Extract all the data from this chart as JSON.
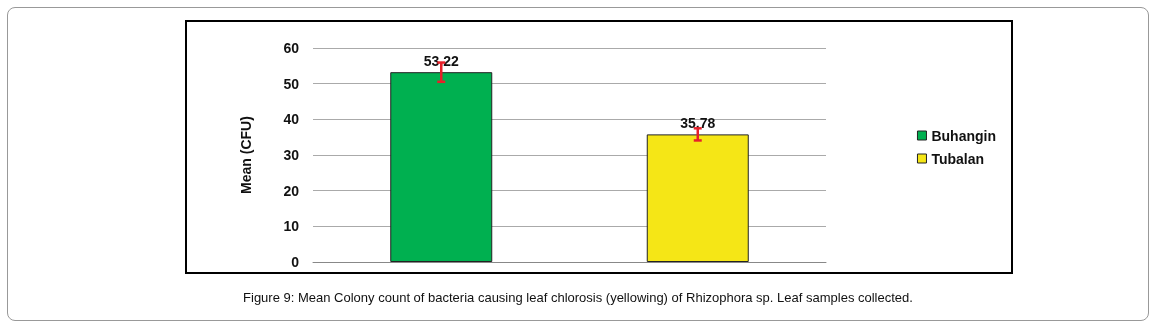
{
  "chart_data": {
    "type": "bar",
    "title": "Figure 9: Mean Colony count of bacteria causing leaf chlorosis (yellowing) of Rhizophora sp. Leaf samples collected.",
    "ylabel": "Mean (CFU)",
    "categories": [
      null,
      null
    ],
    "series": [
      {
        "name": "Buhangin",
        "color": "#00b050",
        "values": [
          53.22,
          null
        ],
        "errors": [
          2.7,
          null
        ]
      },
      {
        "name": "Tubalan",
        "color": "#f5e616",
        "values": [
          null,
          35.78
        ],
        "errors": [
          null,
          1.7
        ]
      }
    ],
    "ylim": [
      0,
      60
    ],
    "yticks": [
      0,
      10,
      20,
      30,
      40,
      50,
      60
    ],
    "grid": "y",
    "legend": "right",
    "data_labels": true
  }
}
